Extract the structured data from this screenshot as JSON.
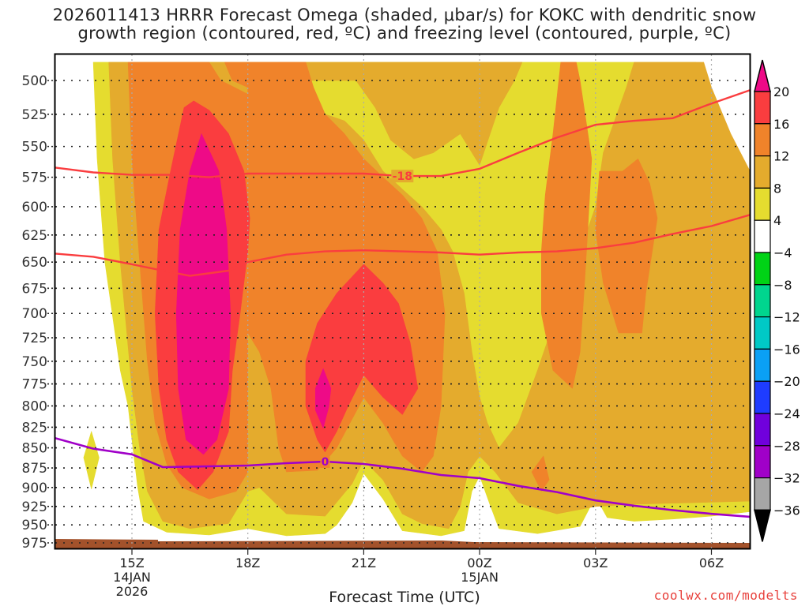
{
  "chart_data": {
    "type": "heatmap",
    "title_lines": [
      "2026011413 HRRR Forecast Omega (shaded, μbar/s) for KOKC with dendritic snow",
      "growth region (contoured, red, ºC) and freezing level (contoured, purple, ºC)"
    ],
    "xlabel": "Forecast Time (UTC)",
    "ylabel": "",
    "x_range_hours": [
      -2.0,
      16.0
    ],
    "x_ticks": [
      {
        "hour": 0,
        "label": "15Z",
        "sub": [
          "14JAN",
          "2026"
        ]
      },
      {
        "hour": 3,
        "label": "18Z",
        "sub": []
      },
      {
        "hour": 6,
        "label": "21Z",
        "sub": []
      },
      {
        "hour": 9,
        "label": "00Z",
        "sub": [
          "15JAN"
        ]
      },
      {
        "hour": 12,
        "label": "03Z",
        "sub": []
      },
      {
        "hour": 15,
        "label": "06Z",
        "sub": []
      }
    ],
    "y_range_hpa": [
      487,
      990
    ],
    "y_scale": "log",
    "y_ticks": [
      500,
      525,
      550,
      575,
      600,
      625,
      650,
      675,
      700,
      725,
      750,
      775,
      800,
      825,
      850,
      875,
      900,
      925,
      950,
      975
    ],
    "grid": true,
    "colorbar": {
      "placement": "right",
      "levels": [
        -36,
        -32,
        -28,
        -24,
        -20,
        -16,
        -12,
        -8,
        -4,
        4,
        8,
        12,
        16,
        20
      ],
      "tick_labels": [
        "20",
        "16",
        "12",
        "8",
        "4",
        "−4",
        "−8",
        "−12",
        "−16",
        "−20",
        "−24",
        "−28",
        "−32",
        "−36"
      ],
      "colors": {
        "above_20": "#ee0a87",
        "16_20": "#fa3d3f",
        "12_16": "#f0832a",
        "8_12": "#e4ab2d",
        "4_8": "#e5dc2f",
        "-4_4": "#ffffff",
        "-8_-4": "#00d316",
        "-12_-8": "#00d58e",
        "-16_-12": "#00c9c6",
        "-20_-16": "#0aa0f5",
        "-24_-20": "#1e3cff",
        "-28_-24": "#7000dc",
        "-32_-28": "#a000c8",
        "-36_-32": "#a6a6a6",
        "below_-36": "#000000"
      }
    },
    "omega_regions": [
      {
        "level": "4_8",
        "points": [
          [
            -1.0,
            487
          ],
          [
            8.2,
            487
          ],
          [
            8.2,
            500
          ],
          [
            7.6,
            520
          ],
          [
            7.3,
            545
          ],
          [
            7.0,
            560
          ],
          [
            6.0,
            560
          ],
          [
            5.7,
            580
          ],
          [
            4.0,
            580
          ],
          [
            3.8,
            500
          ],
          [
            -0.7,
            500
          ],
          [
            -1.0,
            487
          ]
        ]
      },
      {
        "level": "4_8",
        "points": [
          [
            -1.0,
            487
          ],
          [
            -0.7,
            700
          ],
          [
            0.0,
            840
          ],
          [
            0.3,
            920
          ],
          [
            0.6,
            960
          ],
          [
            4.0,
            965
          ],
          [
            5.3,
            955
          ],
          [
            5.7,
            935
          ],
          [
            6.0,
            880
          ],
          [
            6.7,
            930
          ],
          [
            7.0,
            960
          ],
          [
            8.0,
            965
          ],
          [
            8.6,
            960
          ],
          [
            8.8,
            900
          ],
          [
            9.0,
            880
          ],
          [
            9.3,
            930
          ],
          [
            9.5,
            955
          ],
          [
            11.0,
            960
          ],
          [
            11.6,
            945
          ],
          [
            12.0,
            905
          ],
          [
            12.4,
            945
          ],
          [
            13.0,
            940
          ],
          [
            16.0,
            920
          ],
          [
            16.0,
            487
          ],
          [
            14.0,
            487
          ],
          [
            15.0,
            540
          ],
          [
            15.8,
            620
          ],
          [
            16.0,
            690
          ],
          [
            15.3,
            640
          ],
          [
            13.7,
            540
          ],
          [
            12.8,
            487
          ]
        ]
      },
      {
        "level": "4_8",
        "points": [
          [
            -1.05,
            825
          ],
          [
            -0.85,
            860
          ],
          [
            -1.05,
            900
          ],
          [
            -1.25,
            860
          ]
        ]
      }
    ],
    "dgz_isotherms": [
      {
        "value": -18,
        "label": "-18",
        "label_hour": 7.0,
        "points": [
          [
            -2.0,
            567
          ],
          [
            -1.0,
            571
          ],
          [
            0.0,
            573
          ],
          [
            1.0,
            573
          ],
          [
            2.0,
            575
          ],
          [
            3.0,
            572
          ],
          [
            4.0,
            572
          ],
          [
            5.0,
            572
          ],
          [
            6.0,
            572
          ],
          [
            7.0,
            574
          ],
          [
            8.0,
            574
          ],
          [
            9.0,
            568
          ],
          [
            10.0,
            555
          ],
          [
            11.0,
            543
          ],
          [
            12.0,
            533
          ],
          [
            13.0,
            530
          ],
          [
            14.0,
            528
          ],
          [
            14.9,
            518
          ],
          [
            16.0,
            507
          ]
        ]
      },
      {
        "value": -12,
        "label": "",
        "points": [
          [
            -2.0,
            642
          ],
          [
            -1.0,
            645
          ],
          [
            0.0,
            652
          ],
          [
            0.8,
            658
          ],
          [
            1.5,
            663
          ],
          [
            2.5,
            658
          ],
          [
            3.0,
            650
          ],
          [
            4.0,
            643
          ],
          [
            5.0,
            640
          ],
          [
            6.0,
            639
          ],
          [
            7.0,
            640
          ],
          [
            8.0,
            641
          ],
          [
            9.0,
            643
          ],
          [
            10.0,
            641
          ],
          [
            11.0,
            640
          ],
          [
            12.0,
            637
          ],
          [
            13.0,
            632
          ],
          [
            14.0,
            624
          ],
          [
            15.0,
            617
          ],
          [
            16.0,
            607
          ]
        ]
      }
    ],
    "freezing_level": {
      "value": 0,
      "label": "0",
      "label_hour": 5.0,
      "points": [
        [
          -2.0,
          838
        ],
        [
          -1.0,
          851
        ],
        [
          0.0,
          858
        ],
        [
          0.8,
          874
        ],
        [
          2.0,
          873
        ],
        [
          3.0,
          872
        ],
        [
          4.0,
          869
        ],
        [
          5.0,
          867
        ],
        [
          6.0,
          870
        ],
        [
          7.0,
          876
        ],
        [
          8.0,
          884
        ],
        [
          9.0,
          888
        ],
        [
          10.0,
          898
        ],
        [
          11.0,
          906
        ],
        [
          12.0,
          917
        ],
        [
          13.0,
          924
        ],
        [
          14.0,
          930
        ],
        [
          15.0,
          935
        ],
        [
          16.0,
          939
        ]
      ]
    },
    "terrain_hpa": 975
  },
  "colorbar_labels": [
    "20",
    "16",
    "12",
    "8",
    "4",
    "−4",
    "−8",
    "−12",
    "−16",
    "−20",
    "−24",
    "−28",
    "−32",
    "−36"
  ],
  "credit": "coolwx.com/modelts"
}
